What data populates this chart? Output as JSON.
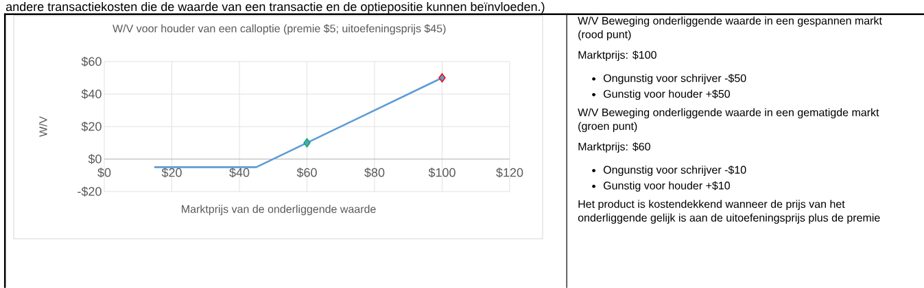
{
  "chart_data": [
    {
      "type": "line",
      "title": "W/V voor houder van een calloptie (premie $5; uitoefeningsprijs $45)",
      "xlabel": "Marktprijs van de onderliggende waarde",
      "ylabel": "W/V",
      "xlim": [
        0,
        120
      ],
      "ylim": [
        -20,
        60
      ],
      "grid": true,
      "xticks": [
        {
          "value": 0,
          "label": "$0"
        },
        {
          "value": 20,
          "label": "$20"
        },
        {
          "value": 40,
          "label": "$40"
        },
        {
          "value": 60,
          "label": "$60"
        },
        {
          "value": 80,
          "label": "$80"
        },
        {
          "value": 100,
          "label": "$100"
        },
        {
          "value": 120,
          "label": "$120"
        }
      ],
      "yticks": [
        {
          "value": -20,
          "label": "-$20"
        },
        {
          "value": 0,
          "label": "$0"
        },
        {
          "value": 20,
          "label": "$20"
        },
        {
          "value": 40,
          "label": "$40"
        },
        {
          "value": 60,
          "label": "$60"
        }
      ],
      "series": [
        {
          "color": "#5b9bd5",
          "x": [
            15,
            45,
            100
          ],
          "values": [
            -5,
            -5,
            50
          ],
          "marker": "none"
        },
        {
          "type": "scatter",
          "color": "#00b050",
          "x": [
            60
          ],
          "values": [
            10
          ],
          "marker": "diamond"
        },
        {
          "type": "scatter",
          "color": "#ff0000",
          "x": [
            100
          ],
          "values": [
            50
          ],
          "marker": "diamond"
        }
      ]
    },
    {
      "type": "other",
      "annotations": [
        "andere transactiekosten die de waarde van een transactie en de optiepositie kunnen beïnvloeden.)",
        "W/V Beweging onderliggende waarde in een gespannen markt (rood punt)",
        "Marktprijs: $100",
        "Ongunstig voor schrijver -$50",
        "Gunstig voor houder +$50",
        "W/V Beweging onderliggende waarde in een gematigde markt (groen punt)",
        "Marktprijs: $60",
        "Ongunstig voor schrijver -$10",
        "Gunstig voor houder +$10",
        "Het product is kostendekkend wanneer de prijs van het onderliggende gelijk is aan de uitoefeningsprijs plus de premie"
      ]
    }
  ]
}
